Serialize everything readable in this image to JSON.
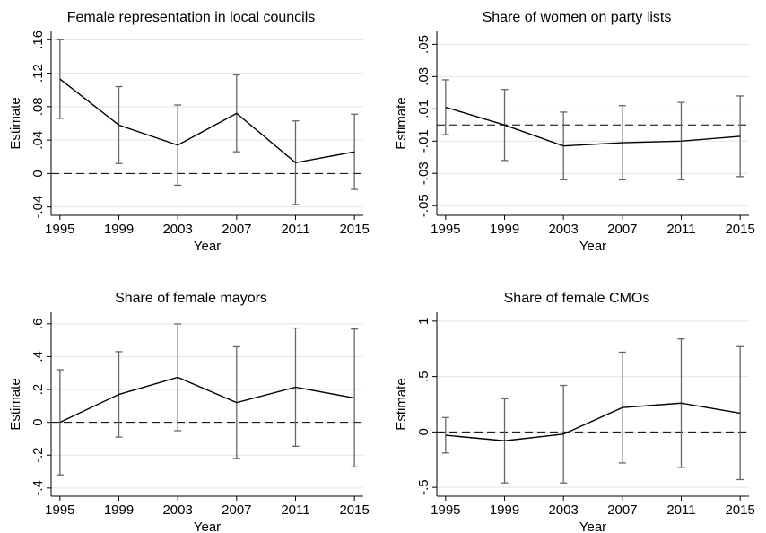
{
  "chart_data": [
    {
      "type": "line",
      "title": "Female representation in local councils",
      "y_label": "Estimate",
      "x_label": "Year",
      "x": [
        1995,
        1999,
        2003,
        2007,
        2011,
        2015
      ],
      "values": [
        0.113,
        0.058,
        0.034,
        0.072,
        0.013,
        0.026
      ],
      "errors": [
        0.047,
        0.046,
        0.048,
        0.046,
        0.05,
        0.045
      ],
      "color": "#000000",
      "error_color": "#666666",
      "xlim": [
        1994.4,
        2015.6
      ],
      "xticks": [
        1995,
        1999,
        2003,
        2007,
        2011,
        2015
      ],
      "ylim": [
        -0.05,
        0.17
      ],
      "yticks": [
        {
          "value": -0.04,
          "label": "-.04"
        },
        0,
        {
          "value": 0.04,
          "label": ".04"
        },
        {
          "value": 0.08,
          "label": ".08"
        },
        {
          "value": 0.12,
          "label": ".12"
        },
        {
          "value": 0.16,
          "label": ".16"
        }
      ],
      "reference_line": 0,
      "grid": true
    },
    {
      "type": "line",
      "title": "Share of women on party lists",
      "y_label": "Estimate",
      "x_label": "Year",
      "x": [
        1995,
        1999,
        2003,
        2007,
        2011,
        2015
      ],
      "values": [
        0.011,
        0.0,
        -0.013,
        -0.011,
        -0.01,
        -0.007
      ],
      "errors": [
        0.017,
        0.022,
        0.021,
        0.023,
        0.024,
        0.025
      ],
      "color": "#000000",
      "error_color": "#666666",
      "xlim": [
        1994.4,
        2015.6
      ],
      "xticks": [
        1995,
        1999,
        2003,
        2007,
        2011,
        2015
      ],
      "ylim": [
        -0.056,
        0.058
      ],
      "yticks": [
        {
          "value": -0.05,
          "label": "-.05"
        },
        {
          "value": -0.03,
          "label": "-.03"
        },
        {
          "value": -0.01,
          "label": "-.01"
        },
        {
          "value": 0.01,
          "label": ".01"
        },
        {
          "value": 0.03,
          "label": ".03"
        },
        {
          "value": 0.05,
          "label": ".05"
        }
      ],
      "reference_line": 0,
      "grid": true
    },
    {
      "type": "line",
      "title": "Share of female mayors",
      "y_label": "Estimate",
      "x_label": "Year",
      "x": [
        1995,
        1999,
        2003,
        2007,
        2011,
        2015
      ],
      "values": [
        0.0,
        0.17,
        0.274,
        0.12,
        0.214,
        0.148
      ],
      "errors": [
        0.32,
        0.26,
        0.325,
        0.34,
        0.36,
        0.42
      ],
      "color": "#000000",
      "error_color": "#666666",
      "xlim": [
        1994.4,
        2015.6
      ],
      "xticks": [
        1995,
        1999,
        2003,
        2007,
        2011,
        2015
      ],
      "ylim": [
        -0.45,
        0.67
      ],
      "yticks": [
        {
          "value": -0.4,
          "label": "-.4"
        },
        {
          "value": -0.2,
          "label": "-.2"
        },
        0,
        {
          "value": 0.2,
          "label": ".2"
        },
        {
          "value": 0.4,
          "label": ".4"
        },
        {
          "value": 0.6,
          "label": ".6"
        }
      ],
      "reference_line": 0,
      "grid": true
    },
    {
      "type": "line",
      "title": "Share of female CMOs",
      "y_label": "Estimate",
      "x_label": "Year",
      "x": [
        1995,
        1999,
        2003,
        2007,
        2011,
        2015
      ],
      "values": [
        -0.03,
        -0.08,
        -0.02,
        0.22,
        0.26,
        0.17
      ],
      "errors": [
        0.16,
        0.38,
        0.44,
        0.5,
        0.58,
        0.6
      ],
      "color": "#000000",
      "error_color": "#666666",
      "xlim": [
        1994.4,
        2015.6
      ],
      "xticks": [
        1995,
        1999,
        2003,
        2007,
        2011,
        2015
      ],
      "ylim": [
        -0.58,
        1.08
      ],
      "yticks": [
        {
          "value": -0.5,
          "label": "-.5"
        },
        0,
        {
          "value": 0.5,
          "label": ".5"
        },
        1
      ],
      "reference_line": 0,
      "grid": true
    }
  ]
}
